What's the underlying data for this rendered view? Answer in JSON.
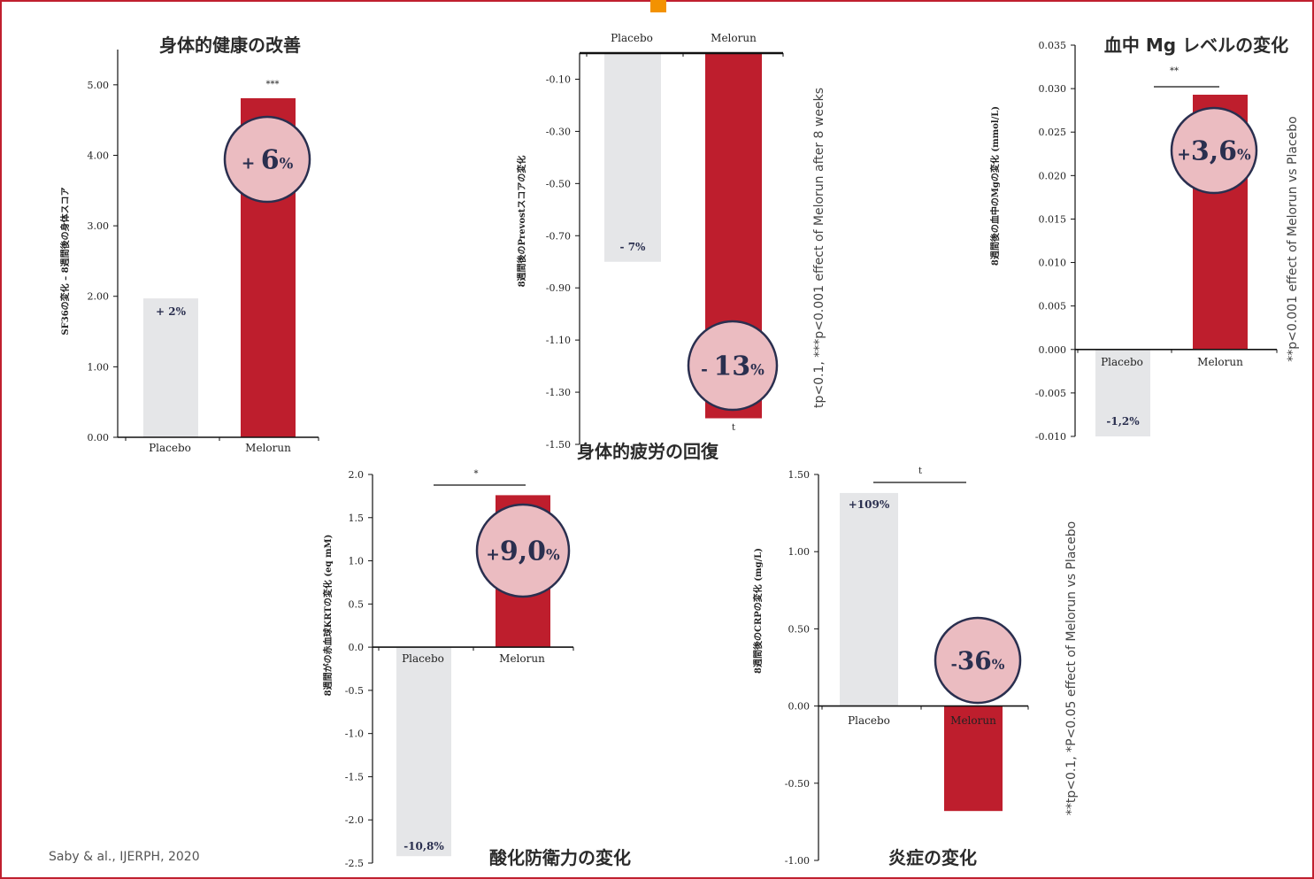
{
  "colors": {
    "frame": "#c0202f",
    "accent": "#f39200",
    "placebo": "#e5e6e8",
    "melorun": "#be1e2d",
    "badge_fill": "#ebbcc1",
    "badge_stroke": "#2a2f4f",
    "text_dark": "#2a2f4f"
  },
  "citation": "Saby & al., IJERPH, 2020",
  "chart_data": [
    {
      "id": "physical",
      "type": "bar",
      "title": "身体的健康の改善",
      "ylabel": "SF36の変化 – 8週間後の身体スコア",
      "ylim": [
        0,
        5.5
      ],
      "yticks": [
        0,
        1,
        2,
        3,
        4,
        5
      ],
      "tick_labels": [
        "0.00",
        "1.00",
        "2.00",
        "3.00",
        "4.00",
        "5.00"
      ],
      "categories": [
        "Placebo",
        "Melorun"
      ],
      "values": [
        1.97,
        4.81
      ],
      "bar_labels": [
        "+ 2%",
        ""
      ],
      "significance": "***",
      "badge": {
        "sign": "+ ",
        "number": "6",
        "unit": "%"
      }
    },
    {
      "id": "fatigue",
      "type": "bar",
      "title": "身体的疲労の回復",
      "ylabel": "8週間後のPrevostスコアの変化",
      "ylim": [
        -1.5,
        0.1
      ],
      "yticks": [
        -0.1,
        -0.3,
        -0.5,
        -0.7,
        -0.9,
        -1.1,
        -1.3,
        -1.5
      ],
      "tick_labels": [
        "-0.10",
        "-0.30",
        "-0.50",
        "-0.70",
        "-0.90",
        "-1.10",
        "-1.30",
        "-1.50"
      ],
      "categories": [
        "Placebo",
        "Melorun"
      ],
      "values": [
        -0.8,
        -1.4
      ],
      "bar_labels": [
        "- 7%",
        ""
      ],
      "significance": "t",
      "badge": {
        "sign": "- ",
        "number": "13",
        "unit": "%"
      },
      "note": "tp<0.1, ***p<0.001 effect of Melorun after 8 weeks"
    },
    {
      "id": "magnesium",
      "type": "bar",
      "title": "血中 Mg レベルの変化",
      "ylabel": "8週間後の血中のMgの変化 (mmol/L)",
      "ylim": [
        -0.01,
        0.035
      ],
      "yticks": [
        -0.01,
        -0.005,
        0,
        0.005,
        0.01,
        0.015,
        0.02,
        0.025,
        0.03,
        0.035
      ],
      "tick_labels": [
        "-0.010",
        "-0.005",
        "0.000",
        "0.005",
        "0.010",
        "0.015",
        "0.020",
        "0.025",
        "0.030",
        "0.035"
      ],
      "categories": [
        "Placebo",
        "Melorun"
      ],
      "values": [
        -0.01,
        0.0293
      ],
      "bar_labels": [
        "-1,2%",
        ""
      ],
      "significance": "**",
      "badge": {
        "sign": "+",
        "number": "3,6",
        "unit": "%"
      },
      "note": "**p<0.001 effect of Melorun vs Placebo"
    },
    {
      "id": "antioxidant",
      "type": "bar",
      "title": "酸化防衛力の変化",
      "ylabel": "8週間がの赤血球KRTの変化 (eq mM)",
      "ylim": [
        -2.5,
        2.0
      ],
      "yticks": [
        -2.5,
        -2.0,
        -1.5,
        -1.0,
        -0.5,
        0,
        0.5,
        1.0,
        1.5,
        2.0
      ],
      "tick_labels": [
        "-2.5",
        "-2.0",
        "-1.5",
        "-1.0",
        "-0.5",
        "0.0",
        "0.5",
        "1.0",
        "1.5",
        "2.0"
      ],
      "categories": [
        "Placebo",
        "Melorun"
      ],
      "values": [
        -2.42,
        1.76
      ],
      "bar_labels": [
        "-10,8%",
        ""
      ],
      "significance": "*",
      "badge": {
        "sign": "+",
        "number": "9,0",
        "unit": "%"
      }
    },
    {
      "id": "inflammation",
      "type": "bar",
      "title": "炎症の変化",
      "ylabel": "8週間後のCRPの変化 (mg/L)",
      "ylim": [
        -1.0,
        1.5
      ],
      "yticks": [
        -1.0,
        -0.5,
        0,
        0.5,
        1.0,
        1.5
      ],
      "tick_labels": [
        "-1.00",
        "-0.50",
        "0.00",
        "0.50",
        "1.00",
        "1.50"
      ],
      "categories": [
        "Placebo",
        "Melorun"
      ],
      "values": [
        1.38,
        -0.68
      ],
      "bar_labels": [
        "+109%",
        ""
      ],
      "significance": "t",
      "badge": {
        "sign": "-",
        "number": "36",
        "unit": "%"
      },
      "note": "**tp<0.1, *P<0.05 effect of Melorun vs Placebo"
    }
  ]
}
